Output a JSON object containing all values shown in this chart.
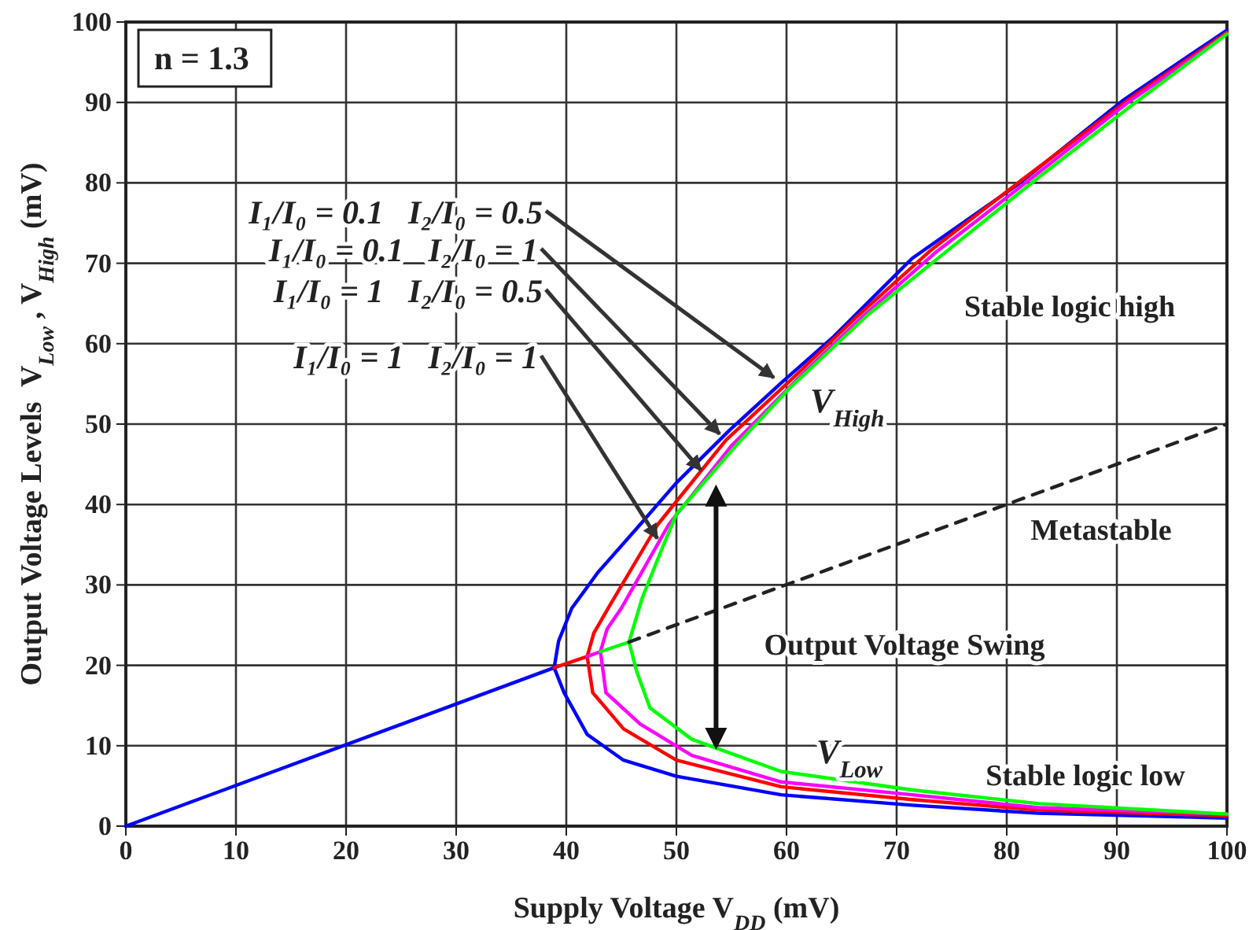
{
  "chart_data": {
    "type": "line",
    "xlabel": "Supply Voltage V$_{DD}$ (mV)",
    "ylabel": "Output Voltage Levels  V$_{Low}$ , V$_{High}$ (mV)",
    "xlim": [
      0,
      100
    ],
    "ylim": [
      0,
      100
    ],
    "xticks": [
      0,
      10,
      20,
      30,
      40,
      50,
      60,
      70,
      80,
      90,
      100
    ],
    "yticks": [
      0,
      10,
      20,
      30,
      40,
      50,
      60,
      70,
      80,
      90,
      100
    ],
    "grid": true,
    "legend": false,
    "marker": "none",
    "line_style": "solid",
    "annotations": [
      "n = 1.3",
      "V$_{High}$",
      "Stable logic high",
      "Metastable",
      "Output Voltage Swing",
      "V$_{Low}$",
      "Stable logic low"
    ],
    "series": [
      {
        "name": "I₁/I₀ = 0.1   I₂/I₀ = 0.5",
        "color": "#0000ff",
        "x": [
          100,
          82.9,
          71.4,
          59.5,
          50,
          45.2,
          41.9,
          39.8,
          38.9,
          39.3,
          40.5,
          42.9,
          46.7,
          50,
          54.8,
          59.5,
          64.3,
          71.4,
          81,
          90.5,
          100
        ],
        "values": [
          1.0,
          1.6,
          2.6,
          3.9,
          6.2,
          8.2,
          11.4,
          16.6,
          19.7,
          23,
          27.1,
          31.6,
          37.5,
          42.7,
          49.2,
          55.1,
          60.9,
          70.6,
          79.8,
          90.2,
          99
        ]
      },
      {
        "name": "I₁/I₀ = 0.1   I₂/I₀ = 1",
        "color": "#ff0000",
        "x": [
          100,
          82.9,
          71.4,
          59.5,
          50,
          45.2,
          42.4,
          41.9,
          42.5,
          43.8,
          48.3,
          54.5,
          60.8,
          66.5,
          73,
          81.5,
          91,
          100
        ],
        "values": [
          1.3,
          2.0,
          3.3,
          4.9,
          8.2,
          12.1,
          16.6,
          21.1,
          24,
          27.1,
          37.5,
          48,
          56,
          63.5,
          71.5,
          80.5,
          90.3,
          98.7
        ]
      },
      {
        "name": "I₁/I₀ = 1   I₂/I₀ = 0.5",
        "color": "#ff00ff",
        "x": [
          100,
          82.9,
          71.4,
          59.5,
          51.4,
          46.7,
          43.6,
          43.1,
          43.7,
          45,
          49.3,
          55,
          61.3,
          67,
          73.5,
          82,
          91,
          100
        ],
        "values": [
          1.5,
          2.3,
          3.9,
          5.5,
          8.8,
          12.7,
          16.6,
          21.7,
          24.5,
          27.1,
          37.5,
          47.3,
          56,
          63.5,
          71.3,
          80.3,
          90,
          98.5
        ]
      },
      {
        "name": "I₁/I₀ = 1   I₂/I₀ = 1",
        "color": "#00ff00",
        "x": [
          100,
          82.9,
          71.4,
          59.5,
          51.4,
          47.6,
          46.4,
          45.7,
          46.9,
          48.6,
          50,
          55.4,
          60.3,
          67.4,
          75,
          83,
          91.5,
          100
        ],
        "values": [
          1.5,
          2.8,
          4.5,
          6.8,
          10.8,
          14.7,
          19.2,
          22.9,
          28.4,
          34.2,
          38.8,
          47.3,
          54.5,
          63.6,
          72,
          80.8,
          89.8,
          98.5
        ]
      },
      {
        "color": "#0000ff",
        "x": [
          0,
          38.9
        ],
        "values": [
          0,
          19.7
        ]
      },
      {
        "color": "#ff0000",
        "x": [
          38.9,
          41.9
        ],
        "values": [
          19.7,
          21.1
        ]
      },
      {
        "color": "#ff00ff",
        "x": [
          41.9,
          43.1
        ],
        "values": [
          21.1,
          21.7
        ]
      },
      {
        "color": "#00ff00",
        "x": [
          43.1,
          45.7
        ],
        "values": [
          21.7,
          22.9
        ]
      },
      {
        "color": "#222222",
        "line_style": "dashed",
        "x": [
          45.7,
          100
        ],
        "values": [
          22.9,
          50
        ]
      }
    ]
  }
}
